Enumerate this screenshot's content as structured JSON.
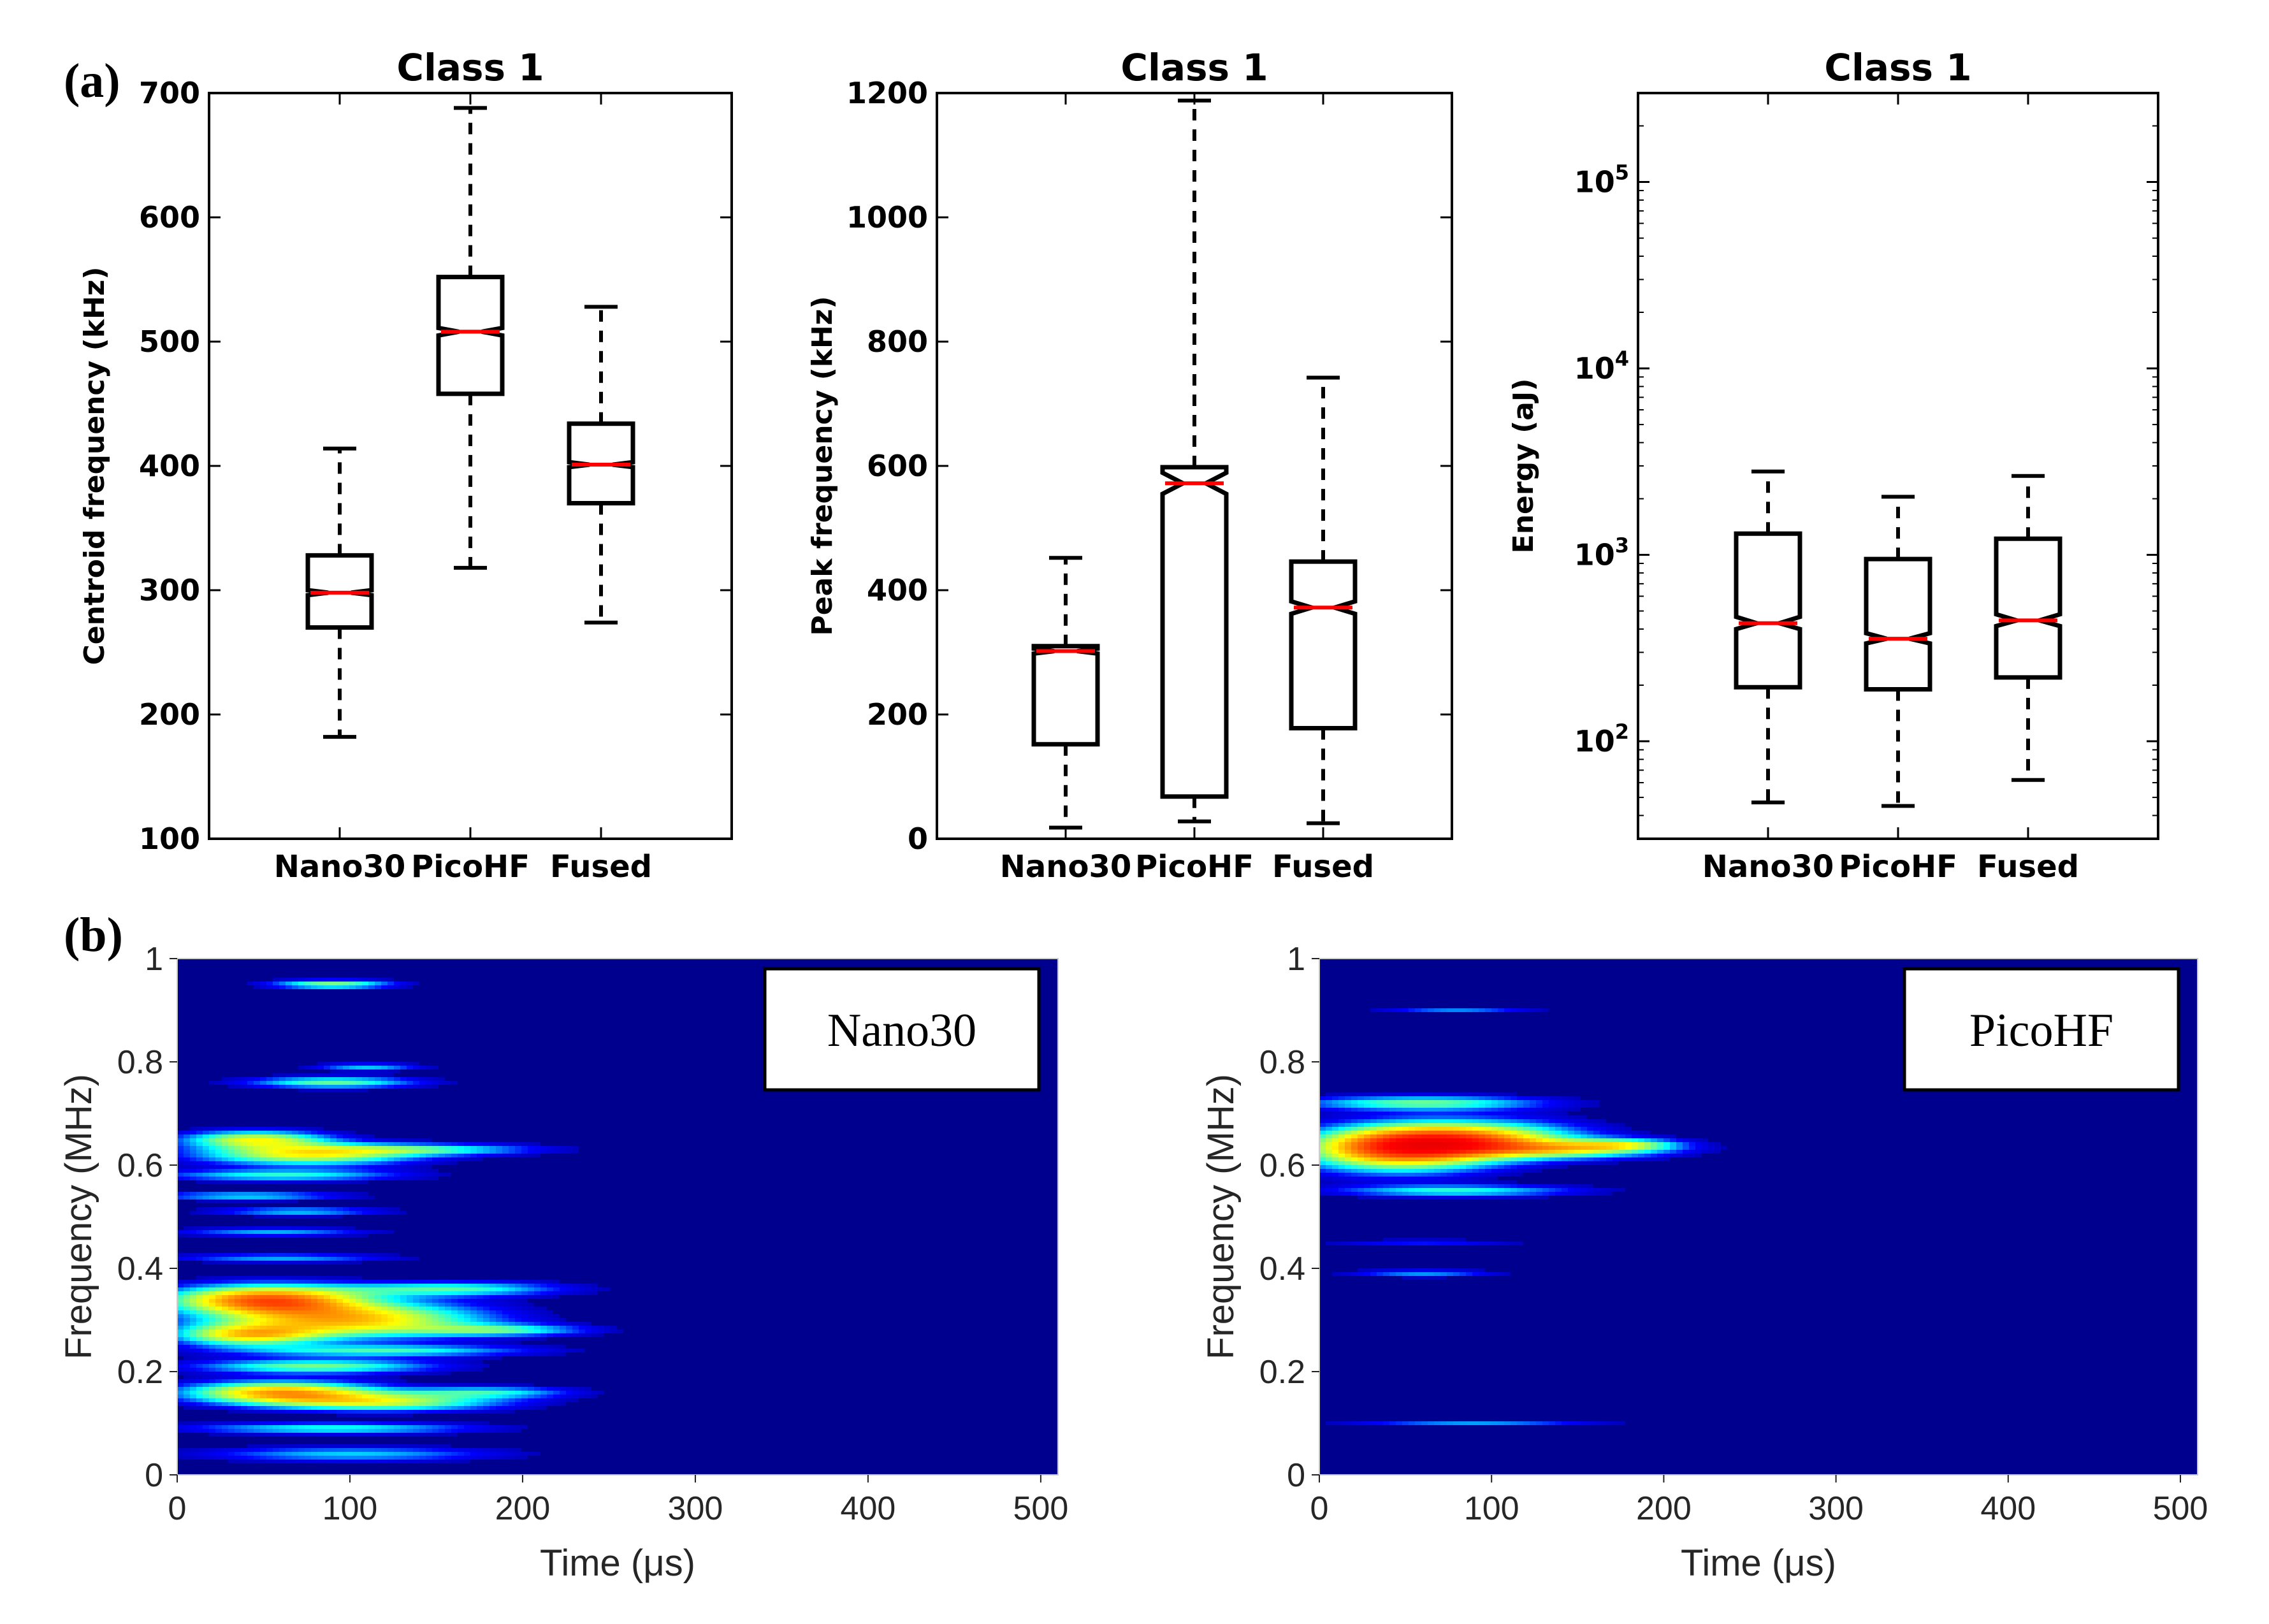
{
  "figure": {
    "panel_a_label": "(a)",
    "panel_b_label": "(b)"
  },
  "chart_data": [
    {
      "type": "boxplot",
      "title": "Class 1",
      "xlabel": "",
      "ylabel": "Centroid frequency (kHz)",
      "yscale": "linear",
      "ylim": [
        100,
        700
      ],
      "yticks": [
        100,
        200,
        300,
        400,
        500,
        600,
        700
      ],
      "ytick_labels": [
        "100",
        "200",
        "300",
        "400",
        "500",
        "600",
        "700"
      ],
      "categories": [
        "Nano30",
        "PicoHF",
        "Fused"
      ],
      "boxes": [
        {
          "name": "Nano30",
          "whisker_low": 182,
          "q1": 270,
          "median": 298,
          "q3": 328,
          "whisker_high": 414,
          "notch_low": 296,
          "notch_high": 300
        },
        {
          "name": "PicoHF",
          "whisker_low": 318,
          "q1": 458,
          "median": 508,
          "q3": 552,
          "whisker_high": 688,
          "notch_low": 505,
          "notch_high": 511
        },
        {
          "name": "Fused",
          "whisker_low": 274,
          "q1": 370,
          "median": 401,
          "q3": 434,
          "whisker_high": 528,
          "notch_low": 399,
          "notch_high": 403
        }
      ]
    },
    {
      "type": "boxplot",
      "title": "Class 1",
      "xlabel": "",
      "ylabel": "Peak frequency (kHz)",
      "yscale": "linear",
      "ylim": [
        0,
        1200
      ],
      "yticks": [
        0,
        200,
        400,
        600,
        800,
        1000,
        1200
      ],
      "ytick_labels": [
        "0",
        "200",
        "400",
        "600",
        "800",
        "1000",
        "1200"
      ],
      "categories": [
        "Nano30",
        "PicoHF",
        "Fused"
      ],
      "boxes": [
        {
          "name": "Nano30",
          "whisker_low": 18,
          "q1": 152,
          "median": 302,
          "q3": 310,
          "whisker_high": 452,
          "notch_low": 298,
          "notch_high": 306
        },
        {
          "name": "PicoHF",
          "whisker_low": 28,
          "q1": 68,
          "median": 572,
          "q3": 598,
          "whisker_high": 1188,
          "notch_low": 555,
          "notch_high": 589
        },
        {
          "name": "Fused",
          "whisker_low": 25,
          "q1": 178,
          "median": 372,
          "q3": 446,
          "whisker_high": 742,
          "notch_low": 362,
          "notch_high": 382
        }
      ]
    },
    {
      "type": "boxplot",
      "title": "Class 1",
      "xlabel": "",
      "ylabel": "Energy (aJ)",
      "yscale": "log",
      "ylim": [
        30,
        300000
      ],
      "yticks": [
        100,
        1000,
        10000,
        100000
      ],
      "ytick_labels": [
        [
          "10",
          "2"
        ],
        [
          "10",
          "3"
        ],
        [
          "10",
          "4"
        ],
        [
          "10",
          "5"
        ]
      ],
      "categories": [
        "Nano30",
        "PicoHF",
        "Fused"
      ],
      "boxes": [
        {
          "name": "Nano30",
          "whisker_low": 47,
          "q1": 195,
          "median": 430,
          "q3": 1300,
          "whisker_high": 2800,
          "notch_low": 400,
          "notch_high": 465
        },
        {
          "name": "PicoHF",
          "whisker_low": 45,
          "q1": 190,
          "median": 355,
          "q3": 950,
          "whisker_high": 2050,
          "notch_low": 335,
          "notch_high": 380
        },
        {
          "name": "Fused",
          "whisker_low": 62,
          "q1": 220,
          "median": 445,
          "q3": 1220,
          "whisker_high": 2650,
          "notch_low": 415,
          "notch_high": 480
        }
      ]
    },
    {
      "type": "heatmap",
      "legend": "Nano30",
      "xlabel": "Time (μs)",
      "ylabel": "Frequency (MHz)",
      "xlim": [
        0,
        510
      ],
      "ylim": [
        0,
        1
      ],
      "xticks": [
        0,
        100,
        200,
        300,
        400,
        500
      ],
      "xtick_labels": [
        "0",
        "100",
        "200",
        "300",
        "400",
        "500"
      ],
      "yticks": [
        0,
        0.2,
        0.4,
        0.6,
        0.8,
        1
      ],
      "ytick_labels": [
        "0",
        "0.2",
        "0.4",
        "0.6",
        "0.8",
        "1"
      ],
      "colormap": [
        "#00008f",
        "#0000ff",
        "#00ffff",
        "#ffff00",
        "#ff0000",
        "#800000"
      ],
      "background": "#00008f",
      "blobs": [
        {
          "t": 90,
          "f": 0.95,
          "st": 25,
          "sf": 0.006,
          "amp": 0.55
        },
        {
          "t": 90,
          "f": 0.76,
          "st": 35,
          "sf": 0.008,
          "amp": 0.5
        },
        {
          "t": 110,
          "f": 0.79,
          "st": 22,
          "sf": 0.005,
          "amp": 0.35
        },
        {
          "t": 45,
          "f": 0.65,
          "st": 30,
          "sf": 0.012,
          "amp": 0.62
        },
        {
          "t": 75,
          "f": 0.62,
          "st": 45,
          "sf": 0.015,
          "amp": 0.68
        },
        {
          "t": 150,
          "f": 0.63,
          "st": 45,
          "sf": 0.008,
          "amp": 0.38
        },
        {
          "t": 60,
          "f": 0.58,
          "st": 50,
          "sf": 0.008,
          "amp": 0.42
        },
        {
          "t": 40,
          "f": 0.54,
          "st": 40,
          "sf": 0.006,
          "amp": 0.38
        },
        {
          "t": 70,
          "f": 0.51,
          "st": 35,
          "sf": 0.006,
          "amp": 0.35
        },
        {
          "t": 55,
          "f": 0.47,
          "st": 40,
          "sf": 0.006,
          "amp": 0.32
        },
        {
          "t": 60,
          "f": 0.42,
          "st": 45,
          "sf": 0.006,
          "amp": 0.32
        },
        {
          "t": 50,
          "f": 0.34,
          "st": 40,
          "sf": 0.02,
          "amp": 0.9
        },
        {
          "t": 100,
          "f": 0.3,
          "st": 55,
          "sf": 0.025,
          "amp": 0.78
        },
        {
          "t": 160,
          "f": 0.36,
          "st": 45,
          "sf": 0.01,
          "amp": 0.45
        },
        {
          "t": 190,
          "f": 0.28,
          "st": 35,
          "sf": 0.008,
          "amp": 0.38
        },
        {
          "t": 40,
          "f": 0.27,
          "st": 30,
          "sf": 0.015,
          "amp": 0.62
        },
        {
          "t": 120,
          "f": 0.24,
          "st": 60,
          "sf": 0.008,
          "amp": 0.42
        },
        {
          "t": 80,
          "f": 0.21,
          "st": 50,
          "sf": 0.01,
          "amp": 0.52
        },
        {
          "t": 60,
          "f": 0.16,
          "st": 40,
          "sf": 0.015,
          "amp": 0.82
        },
        {
          "t": 120,
          "f": 0.14,
          "st": 50,
          "sf": 0.012,
          "amp": 0.58
        },
        {
          "t": 180,
          "f": 0.16,
          "st": 35,
          "sf": 0.008,
          "amp": 0.38
        },
        {
          "t": 90,
          "f": 0.09,
          "st": 60,
          "sf": 0.008,
          "amp": 0.42
        },
        {
          "t": 100,
          "f": 0.04,
          "st": 60,
          "sf": 0.01,
          "amp": 0.35
        }
      ]
    },
    {
      "type": "heatmap",
      "legend": "PicoHF",
      "xlabel": "Time (μs)",
      "ylabel": "Frequency (MHz)",
      "xlim": [
        0,
        510
      ],
      "ylim": [
        0,
        1
      ],
      "xticks": [
        0,
        100,
        200,
        300,
        400,
        500
      ],
      "xtick_labels": [
        "0",
        "100",
        "200",
        "300",
        "400",
        "500"
      ],
      "yticks": [
        0,
        0.2,
        0.4,
        0.6,
        0.8,
        1
      ],
      "ytick_labels": [
        "0",
        "0.2",
        "0.4",
        "0.6",
        "0.8",
        "1"
      ],
      "colormap": [
        "#00008f",
        "#0000ff",
        "#00ffff",
        "#ffff00",
        "#ff0000",
        "#800000"
      ],
      "background": "#00008f",
      "blobs": [
        {
          "t": 45,
          "f": 0.63,
          "st": 40,
          "sf": 0.03,
          "amp": 0.92
        },
        {
          "t": 90,
          "f": 0.65,
          "st": 45,
          "sf": 0.025,
          "amp": 0.72
        },
        {
          "t": 150,
          "f": 0.63,
          "st": 40,
          "sf": 0.012,
          "amp": 0.5
        },
        {
          "t": 60,
          "f": 0.72,
          "st": 50,
          "sf": 0.01,
          "amp": 0.5
        },
        {
          "t": 180,
          "f": 0.64,
          "st": 22,
          "sf": 0.008,
          "amp": 0.35
        },
        {
          "t": 80,
          "f": 0.55,
          "st": 50,
          "sf": 0.008,
          "amp": 0.42
        },
        {
          "t": 80,
          "f": 0.9,
          "st": 30,
          "sf": 0.004,
          "amp": 0.28
        },
        {
          "t": 60,
          "f": 0.39,
          "st": 30,
          "sf": 0.005,
          "amp": 0.3
        },
        {
          "t": 90,
          "f": 0.1,
          "st": 50,
          "sf": 0.004,
          "amp": 0.3
        },
        {
          "t": 60,
          "f": 0.45,
          "st": 40,
          "sf": 0.004,
          "amp": 0.2
        }
      ]
    }
  ]
}
